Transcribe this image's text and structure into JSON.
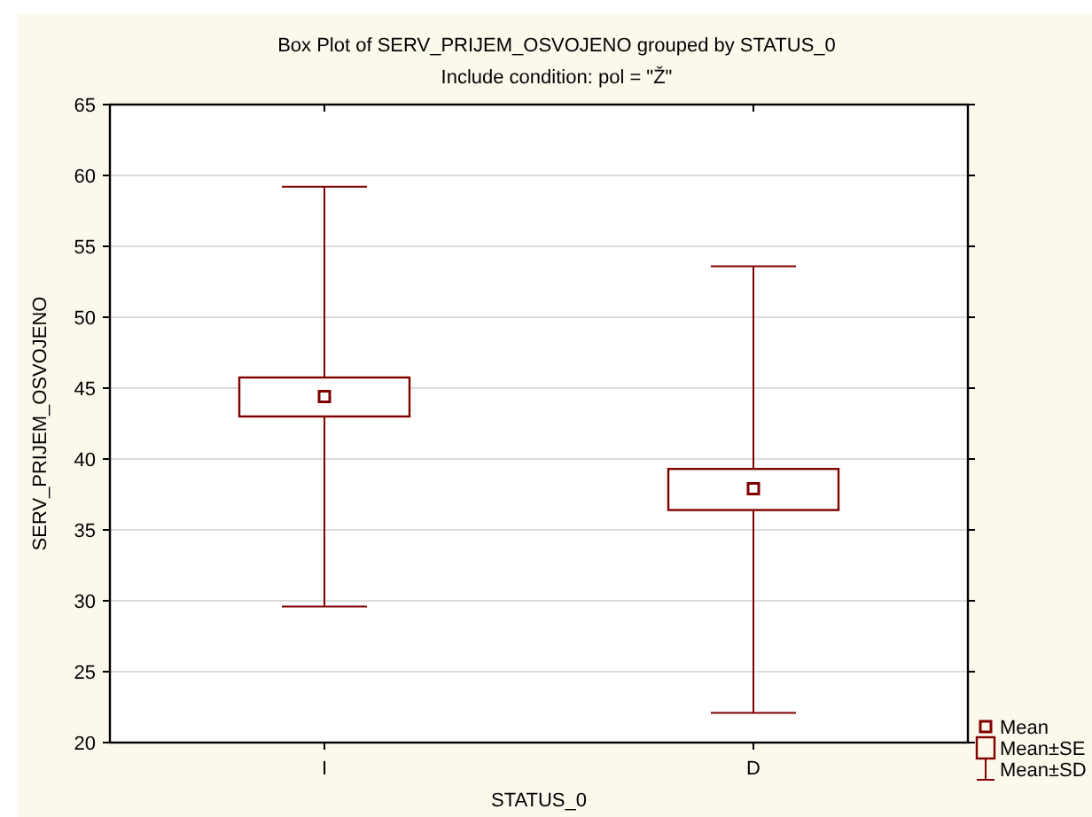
{
  "chart_data": {
    "type": "box",
    "title": "Box Plot of SERV_PRIJEM_OSVOJENO grouped by  STATUS_0",
    "subtitle": "Include condition: pol = \"Ž\"",
    "xlabel": "STATUS_0",
    "ylabel": "SERV_PRIJEM_OSVOJENO",
    "categories": [
      "I",
      "D"
    ],
    "series": [
      {
        "color": "#800000",
        "boxes": [
          {
            "low": 29.6,
            "q1": 43.0,
            "median": 44.4,
            "q3": 45.75,
            "high": 59.2
          },
          {
            "low": 22.1,
            "q1": 36.4,
            "median": 37.9,
            "q3": 39.3,
            "high": 53.6
          }
        ]
      }
    ],
    "ylim": [
      20,
      65
    ],
    "yticks": [
      20,
      25,
      30,
      35,
      40,
      45,
      50,
      55,
      60,
      65
    ],
    "grid": "y",
    "marker": "square",
    "annotations": [
      "Mean",
      "Mean±SE",
      "Mean±SD"
    ]
  }
}
